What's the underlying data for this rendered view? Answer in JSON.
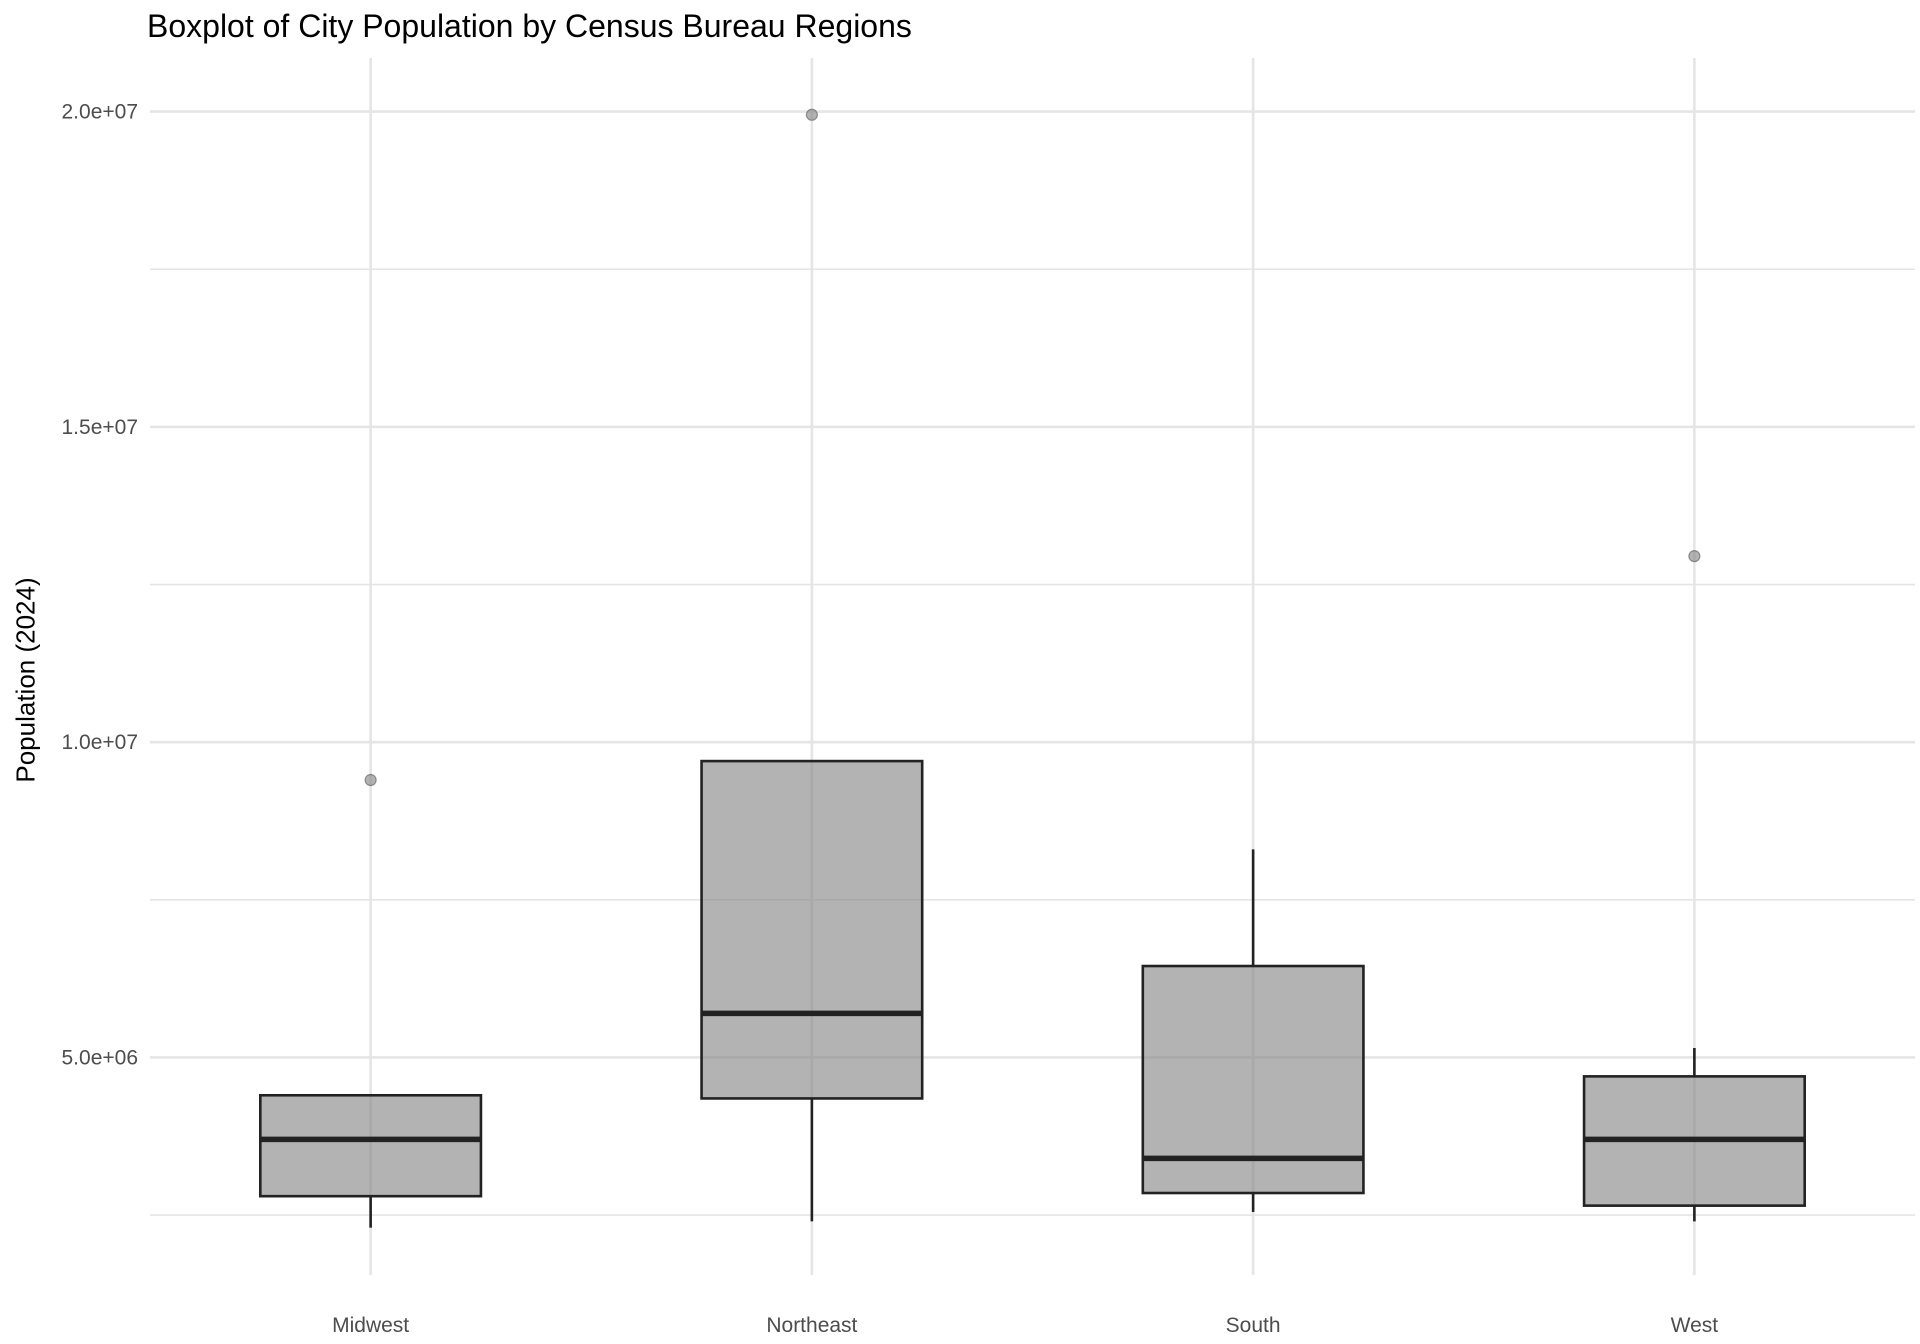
{
  "chart_data": {
    "type": "boxplot",
    "title": "Boxplot of City Population by Census Bureau Regions",
    "xlabel": "",
    "ylabel": "Population (2024)",
    "categories": [
      "Midwest",
      "Northeast",
      "South",
      "West"
    ],
    "ylim": [
      1550000,
      20850000
    ],
    "yticks": [
      5000000,
      10000000,
      15000000,
      20000000
    ],
    "ytick_labels": [
      "5.0e+06",
      "1.0e+07",
      "1.5e+07",
      "2.0e+07"
    ],
    "grid": true,
    "boxes": [
      {
        "category": "Midwest",
        "whisker_low": 2300000,
        "q1": 2800000,
        "median": 3700000,
        "q3": 4400000,
        "whisker_high": 4400000,
        "outliers": [
          9400000
        ]
      },
      {
        "category": "Northeast",
        "whisker_low": 2400000,
        "q1": 4350000,
        "median": 5700000,
        "q3": 9700000,
        "whisker_high": 9700000,
        "outliers": [
          19950000
        ]
      },
      {
        "category": "South",
        "whisker_low": 2550000,
        "q1": 2850000,
        "median": 3400000,
        "q3": 6450000,
        "whisker_high": 8300000,
        "outliers": []
      },
      {
        "category": "West",
        "whisker_low": 2400000,
        "q1": 2650000,
        "median": 3700000,
        "q3": 4700000,
        "whisker_high": 5150000,
        "outliers": [
          12950000
        ]
      }
    ],
    "colors": {
      "box_fill": "#b3b3b3",
      "box_stroke": "#222222",
      "outlier": "#a6a6a6",
      "grid": "#e5e5e5"
    }
  }
}
